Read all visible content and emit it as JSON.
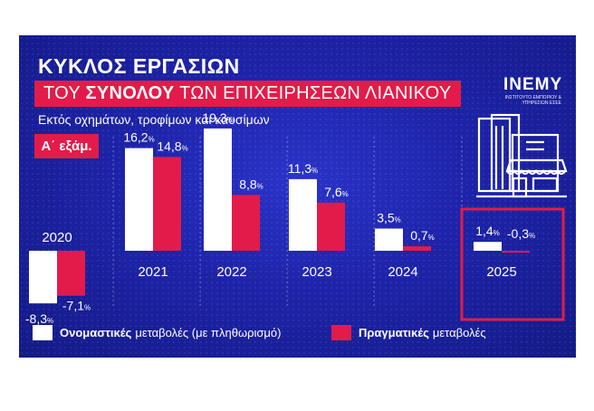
{
  "header": {
    "title_line1": "ΚΥΚΛΟΣ ΕΡΓΑΣΙΩΝ",
    "title_line2_pre": "ΤΟΥ ",
    "title_line2_bold": "ΣΥΝΟΛΟΥ",
    "title_line2_post": " ΤΩΝ ΕΠΙΧΕΙΡΗΣΕΩΝ ΛΙΑΝΙΚΟΥ",
    "subtitle": "Εκτός οχημάτων, τροφίμων και καυσίμων",
    "badge": "Α΄ εξάμ."
  },
  "logo": {
    "name": "INEMY",
    "sub": "ΙΝΣΤΙΤΟΥΤΟ ΕΜΠΟΡΙΟΥ & ΥΠΗΡΕΣΙΩΝ ΕΣΕΕ"
  },
  "legend": {
    "nominal_bold": "Ονομαστικές",
    "nominal_rest": "μεταβολές (με πληθωρισμό)",
    "real_bold": "Πραγματικές",
    "real_rest": "μεταβολές"
  },
  "colors": {
    "background": "#1d23a8",
    "accent": "#e31b4a",
    "nominal": "#ffffff",
    "real": "#e31b4a",
    "highlight_box": "#e31b4a"
  },
  "chart_data": {
    "type": "bar",
    "categories": [
      "2020",
      "2021",
      "2022",
      "2023",
      "2024",
      "2025"
    ],
    "series": [
      {
        "name": "Ονομαστικές μεταβολές (με πληθωρισμό)",
        "values": [
          -8.3,
          16.2,
          19.3,
          11.3,
          3.5,
          1.4
        ]
      },
      {
        "name": "Πραγματικές μεταβολές",
        "values": [
          -7.1,
          14.8,
          8.8,
          7.6,
          0.7,
          -0.3
        ]
      }
    ],
    "value_labels": {
      "nominal": [
        "-8,3",
        "16,2",
        "19,3",
        "11,3",
        "3,5",
        "1,4"
      ],
      "real": [
        "-7,1",
        "14,8",
        "8,8",
        "7,6",
        "0,7",
        "-0,3"
      ]
    },
    "unit": "%",
    "highlighted_category": "2025",
    "grid": false,
    "legend_position": "bottom"
  }
}
